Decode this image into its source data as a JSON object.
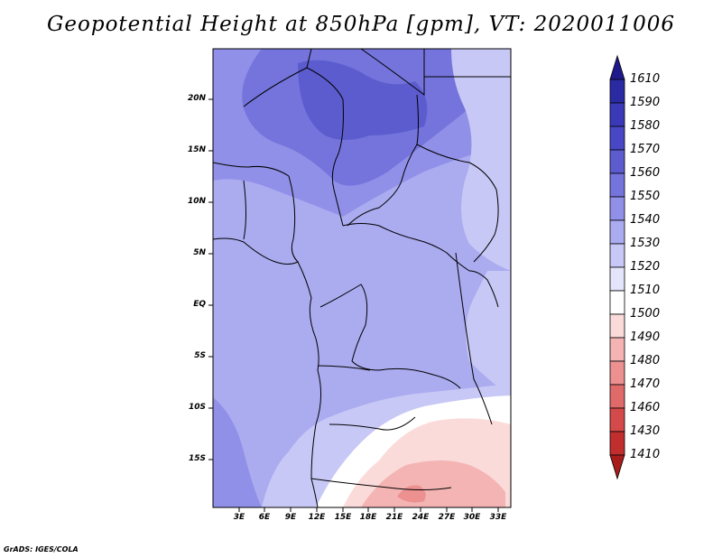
{
  "title": "Geopotential Height at 850hPa [gpm], VT: 2020011006",
  "credit": "GrADS: IGES/COLA",
  "map": {
    "variable": "Geopotential Height",
    "level": "850hPa",
    "units": "gpm",
    "valid_time": "2020011006",
    "lon_range": [
      0,
      34
    ],
    "lat_range": [
      -20,
      25
    ],
    "lat_labels": [
      "20N",
      "15N",
      "10N",
      "5N",
      "EQ",
      "5S",
      "10S",
      "15S"
    ],
    "lon_labels": [
      "3E",
      "6E",
      "9E",
      "12E",
      "15E",
      "18E",
      "21E",
      "24E",
      "27E",
      "30E",
      "33E"
    ]
  },
  "colorbar": {
    "labels": [
      "1610",
      "1590",
      "1580",
      "1570",
      "1560",
      "1550",
      "1540",
      "1530",
      "1520",
      "1510",
      "1500",
      "1490",
      "1480",
      "1470",
      "1460",
      "1430",
      "1410"
    ],
    "colors": [
      "#1f1a8c",
      "#2a2aa3",
      "#3a3ab8",
      "#4848c6",
      "#5c5ccf",
      "#7474dc",
      "#9090e8",
      "#ababf0",
      "#c8c8f6",
      "#e4e4fb",
      "#ffffff",
      "#fbdada",
      "#f4b4b4",
      "#ec9090",
      "#e06a6a",
      "#d44a4a",
      "#c02e2e",
      "#a81c1c"
    ]
  }
}
